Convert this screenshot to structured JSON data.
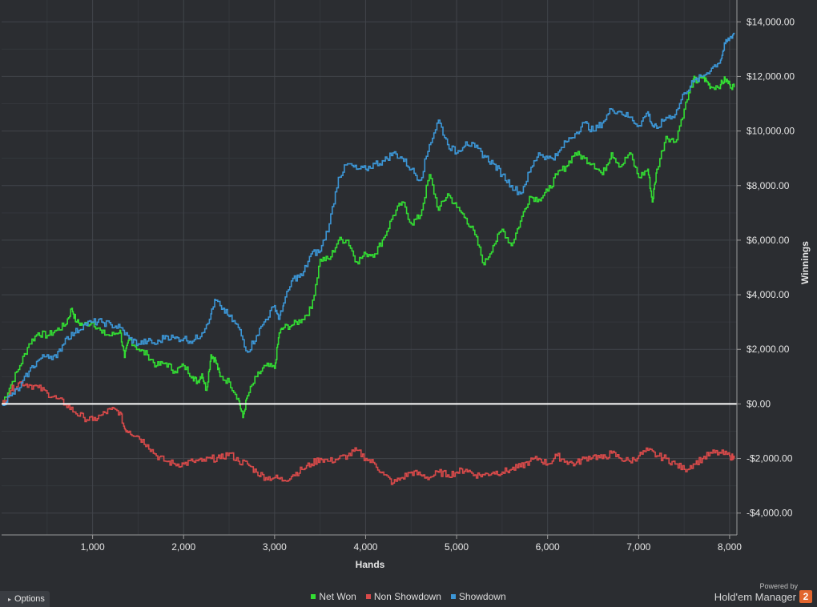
{
  "chart_data": {
    "type": "line",
    "xlabel": "Hands",
    "ylabel": "Winnings",
    "xlim": [
      0,
      8080
    ],
    "ylim": [
      -4800,
      14800
    ],
    "x_ticks": [
      1000,
      2000,
      3000,
      4000,
      5000,
      6000,
      7000,
      8000
    ],
    "x_tick_labels": [
      "1,000",
      "2,000",
      "3,000",
      "4,000",
      "5,000",
      "6,000",
      "7,000",
      "8,000"
    ],
    "y_ticks": [
      -4000,
      -2000,
      0,
      2000,
      4000,
      6000,
      8000,
      10000,
      12000,
      14000
    ],
    "y_tick_labels": [
      "-$4,000.00",
      "-$2,000.00",
      "$0.00",
      "$2,000.00",
      "$4,000.00",
      "$6,000.00",
      "$8,000.00",
      "$10,000.00",
      "$12,000.00",
      "$14,000.00"
    ],
    "grid": true,
    "legend_position": "bottom-center",
    "series": [
      {
        "name": "Net Won",
        "color": "#33dd33",
        "points": [
          [
            0,
            0
          ],
          [
            100,
            700
          ],
          [
            200,
            1400
          ],
          [
            300,
            2200
          ],
          [
            400,
            2600
          ],
          [
            500,
            2500
          ],
          [
            600,
            2700
          ],
          [
            700,
            2900
          ],
          [
            770,
            3500
          ],
          [
            820,
            3000
          ],
          [
            900,
            2900
          ],
          [
            1000,
            3000
          ],
          [
            1100,
            2600
          ],
          [
            1200,
            2500
          ],
          [
            1300,
            2700
          ],
          [
            1350,
            1700
          ],
          [
            1400,
            2400
          ],
          [
            1500,
            2000
          ],
          [
            1600,
            1800
          ],
          [
            1700,
            1400
          ],
          [
            1800,
            1500
          ],
          [
            1900,
            1200
          ],
          [
            2000,
            1400
          ],
          [
            2100,
            1000
          ],
          [
            2150,
            800
          ],
          [
            2200,
            1100
          ],
          [
            2250,
            500
          ],
          [
            2300,
            1800
          ],
          [
            2350,
            1600
          ],
          [
            2400,
            1000
          ],
          [
            2500,
            800
          ],
          [
            2600,
            200
          ],
          [
            2650,
            -500
          ],
          [
            2700,
            300
          ],
          [
            2800,
            1000
          ],
          [
            2900,
            1400
          ],
          [
            3000,
            1300
          ],
          [
            3050,
            2600
          ],
          [
            3100,
            2800
          ],
          [
            3200,
            2900
          ],
          [
            3300,
            3100
          ],
          [
            3400,
            3500
          ],
          [
            3500,
            5300
          ],
          [
            3600,
            5300
          ],
          [
            3700,
            6000
          ],
          [
            3800,
            6000
          ],
          [
            3900,
            5200
          ],
          [
            4000,
            5500
          ],
          [
            4100,
            5500
          ],
          [
            4200,
            6100
          ],
          [
            4300,
            6900
          ],
          [
            4400,
            7400
          ],
          [
            4500,
            6600
          ],
          [
            4600,
            6900
          ],
          [
            4700,
            8400
          ],
          [
            4800,
            7100
          ],
          [
            4900,
            7700
          ],
          [
            5000,
            7200
          ],
          [
            5100,
            6800
          ],
          [
            5200,
            6200
          ],
          [
            5300,
            5100
          ],
          [
            5400,
            5800
          ],
          [
            5500,
            6400
          ],
          [
            5600,
            5800
          ],
          [
            5700,
            6700
          ],
          [
            5800,
            7600
          ],
          [
            5900,
            7500
          ],
          [
            6000,
            7800
          ],
          [
            6100,
            8400
          ],
          [
            6200,
            8700
          ],
          [
            6300,
            9200
          ],
          [
            6400,
            9000
          ],
          [
            6500,
            8800
          ],
          [
            6600,
            8400
          ],
          [
            6700,
            9200
          ],
          [
            6800,
            8700
          ],
          [
            6900,
            9200
          ],
          [
            7000,
            8300
          ],
          [
            7100,
            8600
          ],
          [
            7150,
            7400
          ],
          [
            7200,
            8600
          ],
          [
            7300,
            9800
          ],
          [
            7400,
            9600
          ],
          [
            7500,
            10800
          ],
          [
            7600,
            11900
          ],
          [
            7650,
            11800
          ],
          [
            7700,
            12000
          ],
          [
            7750,
            11800
          ],
          [
            7800,
            11600
          ],
          [
            7900,
            11700
          ],
          [
            7950,
            11900
          ],
          [
            8000,
            11700
          ],
          [
            8050,
            11600
          ]
        ]
      },
      {
        "name": "Non Showdown",
        "color": "#d94a4a",
        "points": [
          [
            0,
            0
          ],
          [
            100,
            500
          ],
          [
            200,
            800
          ],
          [
            300,
            700
          ],
          [
            400,
            600
          ],
          [
            500,
            400
          ],
          [
            600,
            200
          ],
          [
            700,
            0
          ],
          [
            800,
            -300
          ],
          [
            900,
            -500
          ],
          [
            1000,
            -600
          ],
          [
            1100,
            -400
          ],
          [
            1200,
            -200
          ],
          [
            1300,
            -300
          ],
          [
            1350,
            -900
          ],
          [
            1400,
            -1000
          ],
          [
            1500,
            -1200
          ],
          [
            1600,
            -1500
          ],
          [
            1700,
            -1900
          ],
          [
            1800,
            -2100
          ],
          [
            1900,
            -2200
          ],
          [
            2000,
            -2200
          ],
          [
            2100,
            -2100
          ],
          [
            2200,
            -2100
          ],
          [
            2300,
            -2000
          ],
          [
            2400,
            -2000
          ],
          [
            2500,
            -1800
          ],
          [
            2600,
            -2100
          ],
          [
            2700,
            -2200
          ],
          [
            2800,
            -2500
          ],
          [
            2900,
            -2700
          ],
          [
            3000,
            -2700
          ],
          [
            3100,
            -2800
          ],
          [
            3200,
            -2600
          ],
          [
            3300,
            -2400
          ],
          [
            3400,
            -2200
          ],
          [
            3500,
            -2000
          ],
          [
            3600,
            -2100
          ],
          [
            3700,
            -2000
          ],
          [
            3800,
            -1900
          ],
          [
            3900,
            -1700
          ],
          [
            4000,
            -2000
          ],
          [
            4100,
            -2200
          ],
          [
            4200,
            -2600
          ],
          [
            4300,
            -2900
          ],
          [
            4400,
            -2700
          ],
          [
            4500,
            -2500
          ],
          [
            4600,
            -2600
          ],
          [
            4700,
            -2700
          ],
          [
            4800,
            -2500
          ],
          [
            4900,
            -2600
          ],
          [
            5000,
            -2500
          ],
          [
            5100,
            -2400
          ],
          [
            5200,
            -2600
          ],
          [
            5300,
            -2600
          ],
          [
            5400,
            -2500
          ],
          [
            5500,
            -2500
          ],
          [
            5600,
            -2400
          ],
          [
            5700,
            -2300
          ],
          [
            5800,
            -2100
          ],
          [
            5900,
            -2000
          ],
          [
            6000,
            -2200
          ],
          [
            6100,
            -1900
          ],
          [
            6200,
            -2100
          ],
          [
            6300,
            -2200
          ],
          [
            6400,
            -2000
          ],
          [
            6500,
            -1900
          ],
          [
            6600,
            -2000
          ],
          [
            6700,
            -1800
          ],
          [
            6800,
            -2000
          ],
          [
            6900,
            -2100
          ],
          [
            7000,
            -1900
          ],
          [
            7100,
            -1700
          ],
          [
            7200,
            -1900
          ],
          [
            7300,
            -2000
          ],
          [
            7400,
            -2200
          ],
          [
            7500,
            -2400
          ],
          [
            7600,
            -2200
          ],
          [
            7700,
            -2000
          ],
          [
            7800,
            -1800
          ],
          [
            7900,
            -1800
          ],
          [
            8000,
            -1900
          ],
          [
            8050,
            -2000
          ]
        ]
      },
      {
        "name": "Showdown",
        "color": "#3c96d6",
        "points": [
          [
            0,
            0
          ],
          [
            100,
            300
          ],
          [
            200,
            600
          ],
          [
            300,
            1200
          ],
          [
            400,
            1600
          ],
          [
            500,
            1800
          ],
          [
            600,
            1700
          ],
          [
            700,
            2400
          ],
          [
            800,
            2600
          ],
          [
            900,
            2900
          ],
          [
            1000,
            3000
          ],
          [
            1100,
            3000
          ],
          [
            1200,
            2900
          ],
          [
            1300,
            2800
          ],
          [
            1400,
            2400
          ],
          [
            1500,
            2200
          ],
          [
            1600,
            2300
          ],
          [
            1700,
            2200
          ],
          [
            1800,
            2500
          ],
          [
            1900,
            2400
          ],
          [
            2000,
            2400
          ],
          [
            2100,
            2300
          ],
          [
            2200,
            2600
          ],
          [
            2300,
            3300
          ],
          [
            2350,
            3800
          ],
          [
            2400,
            3600
          ],
          [
            2500,
            3200
          ],
          [
            2600,
            2800
          ],
          [
            2700,
            1900
          ],
          [
            2800,
            2500
          ],
          [
            2900,
            3100
          ],
          [
            3000,
            3600
          ],
          [
            3050,
            3100
          ],
          [
            3100,
            3700
          ],
          [
            3200,
            4600
          ],
          [
            3300,
            4700
          ],
          [
            3400,
            5500
          ],
          [
            3500,
            5600
          ],
          [
            3600,
            6600
          ],
          [
            3700,
            8300
          ],
          [
            3800,
            8800
          ],
          [
            3900,
            8600
          ],
          [
            4000,
            8600
          ],
          [
            4100,
            8800
          ],
          [
            4200,
            8900
          ],
          [
            4300,
            9200
          ],
          [
            4400,
            9000
          ],
          [
            4500,
            8600
          ],
          [
            4600,
            8200
          ],
          [
            4700,
            9500
          ],
          [
            4800,
            10400
          ],
          [
            4900,
            9500
          ],
          [
            5000,
            9200
          ],
          [
            5100,
            9600
          ],
          [
            5200,
            9400
          ],
          [
            5300,
            9100
          ],
          [
            5400,
            8800
          ],
          [
            5500,
            8400
          ],
          [
            5600,
            8000
          ],
          [
            5700,
            7700
          ],
          [
            5800,
            8500
          ],
          [
            5900,
            9200
          ],
          [
            6000,
            9000
          ],
          [
            6100,
            9100
          ],
          [
            6200,
            9600
          ],
          [
            6300,
            9900
          ],
          [
            6400,
            10300
          ],
          [
            6500,
            10000
          ],
          [
            6600,
            10300
          ],
          [
            6700,
            10800
          ],
          [
            6800,
            10700
          ],
          [
            6900,
            10500
          ],
          [
            7000,
            10200
          ],
          [
            7100,
            10700
          ],
          [
            7150,
            10200
          ],
          [
            7200,
            10100
          ],
          [
            7300,
            10500
          ],
          [
            7400,
            10600
          ],
          [
            7500,
            11400
          ],
          [
            7600,
            11800
          ],
          [
            7700,
            12000
          ],
          [
            7800,
            12300
          ],
          [
            7900,
            12600
          ],
          [
            7950,
            13200
          ],
          [
            8000,
            13400
          ],
          [
            8050,
            13600
          ]
        ]
      }
    ]
  },
  "ui": {
    "options_label": "Options",
    "powered_by": "Powered by",
    "brand_name": "Hold'em Manager",
    "brand_badge": "2"
  }
}
